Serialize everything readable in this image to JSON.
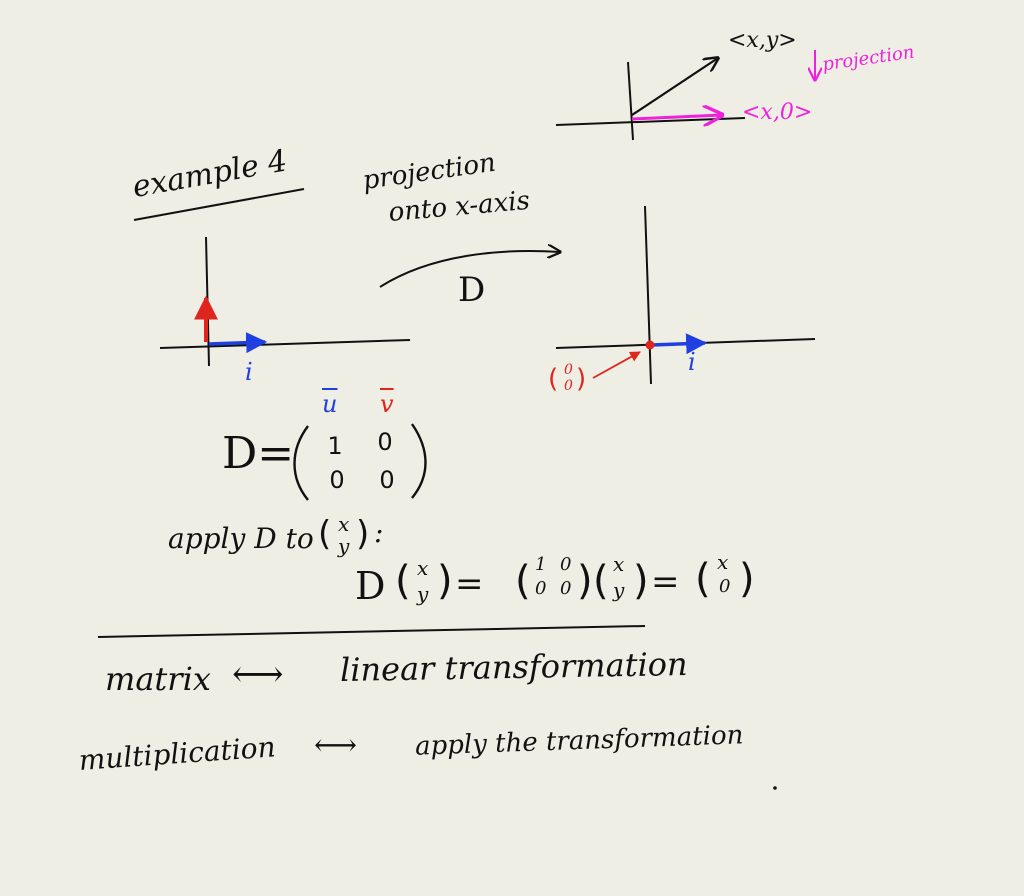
{
  "top_diagram": {
    "vector_label": "<x,y>",
    "projected_label": "<x,0>",
    "projection_note": "projection"
  },
  "example": {
    "title": "example 4",
    "arrow_caption_line1": "projection",
    "arrow_caption_line2": "onto x-axis",
    "map_name": "D",
    "i_label": "i",
    "zero_vector_label": "(0 0)",
    "zero_top": "0",
    "zero_bottom": "0"
  },
  "matrix": {
    "lhs": "D=",
    "u_label": "u",
    "v_label": "v",
    "entries": [
      "1",
      "0",
      "0",
      "0"
    ]
  },
  "application": {
    "prompt": "apply D to",
    "vec_top": "x",
    "vec_bottom": "y",
    "colon": ":",
    "lhs": "D",
    "equals": "=",
    "result_top": "x",
    "result_bottom": "0"
  },
  "summary": {
    "row1_left": "matrix",
    "row1_arrow": "⟷",
    "row1_right": "linear transformation",
    "row2_left": "multiplication",
    "row2_arrow": "⟷",
    "row2_right": "apply the transformation"
  },
  "colors": {
    "background": "#eeeee4",
    "ink": "#111111",
    "blue": "#1f3fe0",
    "red": "#e0251e",
    "magenta": "#ee22dd"
  }
}
